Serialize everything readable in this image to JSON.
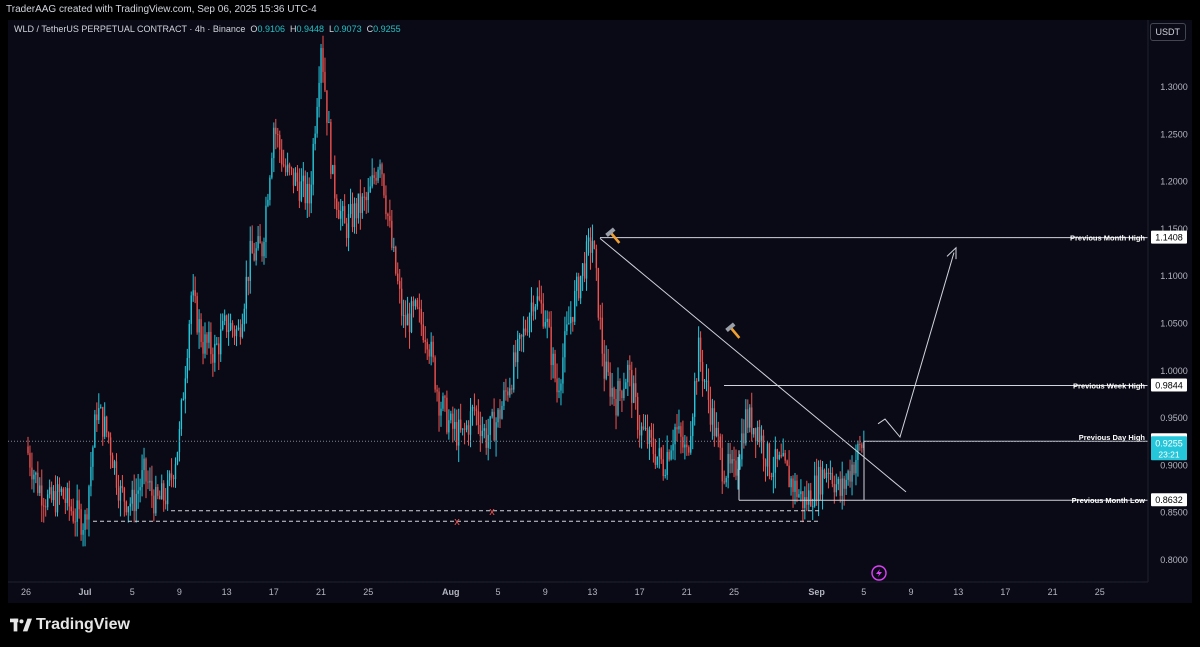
{
  "header": {
    "credit": "TraderAAG created with TradingView.com, Sep 06, 2025 15:36 UTC-4"
  },
  "legend": {
    "symbol": "WLD / TetherUS PERPETUAL CONTRACT · 4h · Binance",
    "o_label": "O",
    "o": "0.9106",
    "h_label": "H",
    "h": "0.9448",
    "l_label": "L",
    "l": "0.9073",
    "c_label": "C",
    "c": "0.9255"
  },
  "currency_button": "USDT",
  "footer": {
    "logo_text": "TradingView"
  },
  "colors": {
    "up": "#26c6da",
    "down": "#ef5350",
    "bg": "#0a0a16",
    "line": "#d1d4dc"
  },
  "chart_data": {
    "type": "candlestick",
    "timeframe": "4h",
    "ylim": [
      0.78,
      1.36
    ],
    "y_ticks": [
      "0.8000",
      "0.8500",
      "0.9000",
      "0.9500",
      "1.0000",
      "1.0500",
      "1.1000",
      "1.1500",
      "1.2000",
      "1.2500",
      "1.3000"
    ],
    "x_ticks": [
      "26",
      "Jul",
      "5",
      "9",
      "13",
      "17",
      "21",
      "25",
      "Aug",
      "5",
      "9",
      "13",
      "17",
      "21",
      "25",
      "Sep",
      "5",
      "9",
      "13",
      "17",
      "21",
      "25"
    ],
    "price_path": [
      {
        "t": "Jun 26",
        "p": 0.92
      },
      {
        "t": "Jun 27",
        "p": 0.88
      },
      {
        "t": "Jun 28",
        "p": 0.86
      },
      {
        "t": "Jun 30",
        "p": 0.87
      },
      {
        "t": "Jul 1",
        "p": 0.85
      },
      {
        "t": "Jul 2",
        "p": 0.84
      },
      {
        "t": "Jul 3",
        "p": 0.96
      },
      {
        "t": "Jul 4",
        "p": 0.93
      },
      {
        "t": "Jul 5",
        "p": 0.87
      },
      {
        "t": "Jul 6",
        "p": 0.86
      },
      {
        "t": "Jul 7",
        "p": 0.89
      },
      {
        "t": "Jul 8",
        "p": 0.86
      },
      {
        "t": "Jul 9",
        "p": 0.87
      },
      {
        "t": "Jul 10",
        "p": 0.93
      },
      {
        "t": "Jul 11",
        "p": 1.08
      },
      {
        "t": "Jul 12",
        "p": 1.03
      },
      {
        "t": "Jul 13",
        "p": 1.02
      },
      {
        "t": "Jul 14",
        "p": 1.05
      },
      {
        "t": "Jul 15",
        "p": 1.04
      },
      {
        "t": "Jul 16",
        "p": 1.12
      },
      {
        "t": "Jul 17",
        "p": 1.13
      },
      {
        "t": "Jul 18",
        "p": 1.26
      },
      {
        "t": "Jul 19",
        "p": 1.21
      },
      {
        "t": "Jul 20",
        "p": 1.2
      },
      {
        "t": "Jul 21",
        "p": 1.18
      },
      {
        "t": "Jul 22",
        "p": 1.35
      },
      {
        "t": "Jul 23",
        "p": 1.2
      },
      {
        "t": "Jul 24",
        "p": 1.15
      },
      {
        "t": "Jul 25",
        "p": 1.17
      },
      {
        "t": "Jul 26",
        "p": 1.18
      },
      {
        "t": "Jul 27",
        "p": 1.23
      },
      {
        "t": "Jul 28",
        "p": 1.13
      },
      {
        "t": "Jul 29",
        "p": 1.05
      },
      {
        "t": "Jul 30",
        "p": 1.06
      },
      {
        "t": "Jul 31",
        "p": 1.04
      },
      {
        "t": "Aug 1",
        "p": 0.97
      },
      {
        "t": "Aug 2",
        "p": 0.94
      },
      {
        "t": "Aug 3",
        "p": 0.93
      },
      {
        "t": "Aug 4",
        "p": 0.96
      },
      {
        "t": "Aug 5",
        "p": 0.93
      },
      {
        "t": "Aug 6",
        "p": 0.95
      },
      {
        "t": "Aug 7",
        "p": 0.99
      },
      {
        "t": "Aug 8",
        "p": 1.03
      },
      {
        "t": "Aug 9",
        "p": 1.08
      },
      {
        "t": "Aug 10",
        "p": 1.06
      },
      {
        "t": "Aug 11",
        "p": 0.98
      },
      {
        "t": "Aug 12",
        "p": 1.05
      },
      {
        "t": "Aug 13",
        "p": 1.1
      },
      {
        "t": "Aug 14",
        "p": 1.14
      },
      {
        "t": "Aug 15",
        "p": 1.0
      },
      {
        "t": "Aug 16",
        "p": 0.97
      },
      {
        "t": "Aug 17",
        "p": 1.0
      },
      {
        "t": "Aug 18",
        "p": 0.94
      },
      {
        "t": "Aug 19",
        "p": 0.92
      },
      {
        "t": "Aug 20",
        "p": 0.9
      },
      {
        "t": "Aug 21",
        "p": 0.94
      },
      {
        "t": "Aug 22",
        "p": 0.91
      },
      {
        "t": "Aug 23",
        "p": 1.02
      },
      {
        "t": "Aug 24",
        "p": 0.96
      },
      {
        "t": "Aug 25",
        "p": 0.9
      },
      {
        "t": "Aug 26",
        "p": 0.89
      },
      {
        "t": "Aug 27",
        "p": 0.95
      },
      {
        "t": "Aug 28",
        "p": 0.94
      },
      {
        "t": "Aug 29",
        "p": 0.9
      },
      {
        "t": "Aug 30",
        "p": 0.9
      },
      {
        "t": "Aug 31",
        "p": 0.88
      },
      {
        "t": "Sep 1",
        "p": 0.86
      },
      {
        "t": "Sep 2",
        "p": 0.88
      },
      {
        "t": "Sep 3",
        "p": 0.9
      },
      {
        "t": "Sep 4",
        "p": 0.87
      },
      {
        "t": "Sep 5",
        "p": 0.9
      },
      {
        "t": "Sep 6",
        "p": 0.9255
      }
    ],
    "levels": [
      {
        "label": "Previous Month High",
        "value": "1.1408"
      },
      {
        "label": "Previous Week High",
        "value": "0.9844"
      },
      {
        "label": "Previous Day High",
        "value": "0.9266"
      },
      {
        "label": "Previous Month Low",
        "value": "0.8632"
      }
    ],
    "current_price": "0.9255",
    "countdown": "23:21",
    "annotations": [
      "x",
      "x"
    ]
  }
}
